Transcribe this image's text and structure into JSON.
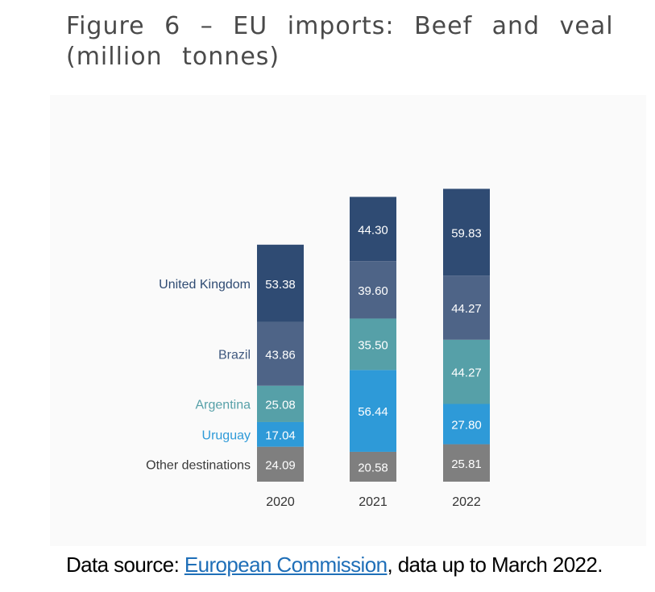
{
  "title": "Figure 6 – EU imports: Beef and veal (million tonnes)",
  "source": {
    "prefix": "Data source: ",
    "link_text": "European Commission",
    "suffix": ", data up to March 2022."
  },
  "chart_data": {
    "type": "bar",
    "stacked": true,
    "categories": [
      "2020",
      "2021",
      "2022"
    ],
    "series": [
      {
        "name": "Other destinations",
        "values": [
          24.09,
          20.58,
          25.81
        ],
        "color": "#7f7f7f",
        "label_color": "#3a3a3a"
      },
      {
        "name": "Uruguay",
        "values": [
          17.04,
          56.44,
          27.8
        ],
        "color": "#2e9ad8",
        "label_color": "#2e9ad8"
      },
      {
        "name": "Argentina",
        "values": [
          25.08,
          35.5,
          44.27
        ],
        "color": "#56a0a8",
        "label_color": "#56a0a8"
      },
      {
        "name": "Brazil",
        "values": [
          43.86,
          39.6,
          44.27
        ],
        "color": "#4e6487",
        "label_color": "#3f587e"
      },
      {
        "name": "United Kingdom",
        "values": [
          53.38,
          44.3,
          59.83
        ],
        "color": "#2f4b73",
        "label_color": "#2f4b73"
      }
    ],
    "value_labels": [
      [
        "24.09",
        "17.04",
        "25.08",
        "43.86",
        "53.38"
      ],
      [
        "20.58",
        "56.44",
        "35.50",
        "39.60",
        "44.30"
      ],
      [
        "25.81",
        "27.80",
        "44.27",
        "44.27",
        "59.83"
      ]
    ],
    "legend_placement": "inline-left-of-first-bar",
    "grid": false,
    "ylim": [
      0,
      205
    ]
  }
}
